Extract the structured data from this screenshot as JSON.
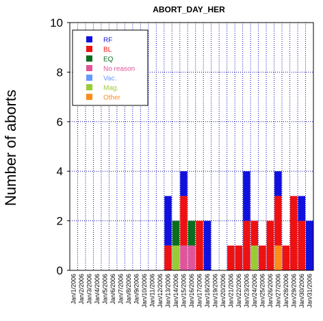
{
  "chart_data": {
    "type": "bar",
    "stacked": true,
    "title": "ABORT_DAY_HER",
    "ylabel": "Number of aborts",
    "xlabel": "",
    "ylim": [
      0,
      10
    ],
    "yticks": [
      "0",
      "2",
      "4",
      "6",
      "8",
      "10"
    ],
    "grid": true,
    "legend_position": "top-left",
    "categories": [
      "Jan/1/2006",
      "Jan/2/2006",
      "Jan/3/2006",
      "Jan/4/2006",
      "Jan/5/2006",
      "Jan/6/2006",
      "Jan/7/2006",
      "Jan/8/2006",
      "Jan/9/2006",
      "Jan/10/2006",
      "Jan/11/2006",
      "Jan/12/2006",
      "Jan/13/2006",
      "Jan/14/2006",
      "Jan/15/2006",
      "Jan/16/2006",
      "Jan/17/2006",
      "Jan/18/2006",
      "Jan/19/2006",
      "Jan/20/2006",
      "Jan/21/2006",
      "Jan/22/2006",
      "Jan/23/2006",
      "Jan/24/2006",
      "Jan/25/2006",
      "Jan/26/2006",
      "Jan/27/2006",
      "Jan/28/2006",
      "Jan/29/2006",
      "Jan/30/2006",
      "Jan/31/2006"
    ],
    "series": [
      {
        "name": "Other",
        "color": "#ff8c1a",
        "values": [
          0,
          0,
          0,
          0,
          0,
          0,
          0,
          0,
          0,
          0,
          0,
          0,
          0,
          0,
          0,
          0,
          0,
          0,
          0,
          0,
          0,
          0,
          0,
          0,
          0,
          0,
          1,
          0,
          0,
          0,
          0
        ]
      },
      {
        "name": "Mag.",
        "color": "#99cc33",
        "values": [
          0,
          0,
          0,
          0,
          0,
          0,
          0,
          0,
          0,
          0,
          0,
          0,
          0,
          1,
          0,
          0,
          0,
          0,
          0,
          0,
          0,
          0,
          0,
          1,
          0,
          0,
          0,
          0,
          0,
          0,
          0
        ]
      },
      {
        "name": "Vac.",
        "color": "#6699ff",
        "values": [
          0,
          0,
          0,
          0,
          0,
          0,
          0,
          0,
          0,
          0,
          0,
          0,
          0,
          0,
          0,
          0,
          0,
          0,
          0,
          0,
          0,
          0,
          0,
          0,
          0,
          0,
          0,
          0,
          0,
          0,
          0
        ]
      },
      {
        "name": "No reason",
        "color": "#e0559a",
        "values": [
          0,
          0,
          0,
          0,
          0,
          0,
          0,
          0,
          0,
          0,
          0,
          0,
          0,
          0,
          1,
          1,
          0,
          0,
          0,
          0,
          0,
          0,
          0,
          0,
          0,
          0,
          0,
          0,
          0,
          0,
          0
        ]
      },
      {
        "name": "EQ",
        "color": "#0a6e1e",
        "values": [
          0,
          0,
          0,
          0,
          0,
          0,
          0,
          0,
          0,
          0,
          0,
          0,
          0,
          1,
          0,
          1,
          0,
          0,
          0,
          0,
          0,
          0,
          0,
          0,
          0,
          0,
          0,
          0,
          0,
          0,
          0
        ]
      },
      {
        "name": "BL",
        "color": "#ee1111",
        "values": [
          0,
          0,
          0,
          0,
          0,
          0,
          0,
          0,
          0,
          0,
          0,
          0,
          1,
          0,
          2,
          0,
          2,
          0,
          0,
          0,
          1,
          1,
          2,
          1,
          1,
          2,
          2,
          1,
          3,
          2,
          0
        ]
      },
      {
        "name": "RF",
        "color": "#1111dd",
        "values": [
          0,
          0,
          0,
          0,
          0,
          0,
          0,
          0,
          0,
          0,
          0,
          0,
          2,
          0,
          1,
          0,
          0,
          2,
          0,
          0,
          0,
          0,
          2,
          0,
          0,
          0,
          1,
          0,
          0,
          1,
          2
        ]
      }
    ],
    "legend_order": [
      "RF",
      "BL",
      "EQ",
      "No reason",
      "Vac.",
      "Mag.",
      "Other"
    ]
  }
}
